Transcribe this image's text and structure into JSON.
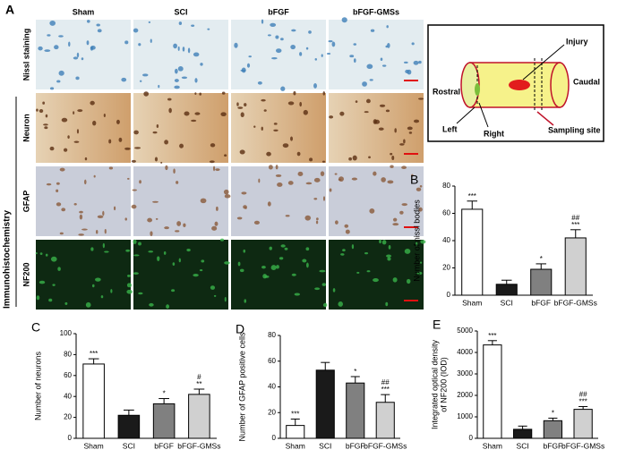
{
  "figure": {
    "panel_a": "A",
    "columns": [
      "Sham",
      "SCI",
      "bFGF",
      "bFGF-GMSs"
    ],
    "rows": [
      "Nissl staining",
      "Neuron",
      "GFAP",
      "NF200"
    ],
    "group": "Immunohistochemistry",
    "diagram": {
      "injury": "Injury",
      "rostral": "Rostral",
      "caudal": "Caudal",
      "left": "Left",
      "right": "Right",
      "sampling": "Sampling site"
    }
  },
  "chart_data": [
    {
      "type": "bar",
      "label": "B",
      "y_label": [
        "Number of nissl bodies"
      ],
      "categories": [
        "Sham",
        "SCI",
        "bFGF",
        "bFGF-GMSs"
      ],
      "values": [
        63,
        8,
        19,
        42
      ],
      "errors": [
        6,
        3,
        4,
        6
      ],
      "colors": [
        "#ffffff",
        "#1a1a1a",
        "#808080",
        "#d0d0d0"
      ],
      "annotations": [
        [
          "***"
        ],
        [],
        [
          "*"
        ],
        [
          "##",
          "***"
        ]
      ],
      "ylim": [
        0,
        80
      ],
      "yticks": [
        0,
        20,
        40,
        60,
        80
      ]
    },
    {
      "type": "bar",
      "label": "C",
      "y_label": [
        "Number of neurons"
      ],
      "categories": [
        "Sham",
        "SCI",
        "bFGF",
        "bFGF-GMSs"
      ],
      "values": [
        71,
        22,
        33,
        42
      ],
      "errors": [
        5,
        5,
        5,
        5
      ],
      "colors": [
        "#ffffff",
        "#1a1a1a",
        "#808080",
        "#d0d0d0"
      ],
      "annotations": [
        [
          "***"
        ],
        [],
        [
          "*"
        ],
        [
          "#",
          "**"
        ]
      ],
      "ylim": [
        0,
        100
      ],
      "yticks": [
        0,
        20,
        40,
        60,
        80,
        100
      ]
    },
    {
      "type": "bar",
      "label": "D",
      "y_label": [
        "Number of GFAP positive cells"
      ],
      "categories": [
        "Sham",
        "SCI",
        "bFGF",
        "bFGF-GMSs"
      ],
      "values": [
        10,
        53,
        43,
        28
      ],
      "errors": [
        5,
        6,
        5,
        6
      ],
      "colors": [
        "#ffffff",
        "#1a1a1a",
        "#808080",
        "#d0d0d0"
      ],
      "annotations": [
        [
          "***"
        ],
        [],
        [
          "*"
        ],
        [
          "##",
          "***"
        ]
      ],
      "ylim": [
        0,
        80
      ],
      "yticks": [
        0,
        20,
        40,
        60,
        80
      ]
    },
    {
      "type": "bar",
      "label": "E",
      "y_label": [
        "Integrated optical density",
        "of NF200 (IOD)"
      ],
      "categories": [
        "Sham",
        "SCI",
        "bFGF",
        "bFGF-GMSs"
      ],
      "values": [
        4350,
        420,
        820,
        1350
      ],
      "errors": [
        200,
        150,
        120,
        130
      ],
      "colors": [
        "#ffffff",
        "#1a1a1a",
        "#808080",
        "#d0d0d0"
      ],
      "annotations": [
        [
          "***"
        ],
        [],
        [
          "*"
        ],
        [
          "##",
          "***"
        ]
      ],
      "ylim": [
        0,
        5000
      ],
      "yticks": [
        0,
        1000,
        2000,
        3000,
        4000,
        5000
      ]
    }
  ]
}
